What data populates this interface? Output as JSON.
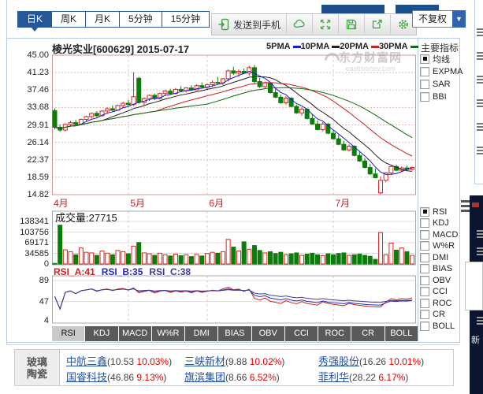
{
  "period_tabs": {
    "items": [
      {
        "label": "日K",
        "active": true
      },
      {
        "label": "周K",
        "active": false
      },
      {
        "label": "月K",
        "active": false
      },
      {
        "label": "5分钟",
        "active": false
      },
      {
        "label": "15分钟",
        "active": false
      }
    ]
  },
  "toolbar": {
    "send_button": "发送到手机",
    "icon_buttons": [
      "cloud-icon",
      "fullscreen-icon",
      "save-icon",
      "share-icon",
      "settings-icon"
    ],
    "adjust_label": "不复权",
    "dropdown_arrow": "▼",
    "icon_color": "#3aaa3a"
  },
  "chart_header": {
    "title": "棱光实业[600629] 2015-07-17",
    "legend": [
      {
        "label": "5PMA",
        "color": "#1a1ad2"
      },
      {
        "label": "10PMA",
        "color": "#202020"
      },
      {
        "label": "20PMA",
        "color": "#cc2020"
      },
      {
        "label": "30PMA",
        "color": "#0c6b0c"
      }
    ]
  },
  "watermark": {
    "name": "东方财富网",
    "domain": "eastmoney.com"
  },
  "indicator_panel": {
    "title": "主要指标",
    "main_options": [
      {
        "label": "均线",
        "checked": true
      },
      {
        "label": "EXPMA",
        "checked": false
      },
      {
        "label": "SAR",
        "checked": false
      },
      {
        "label": "BBI",
        "checked": false
      }
    ],
    "sub_options": [
      {
        "label": "RSI",
        "checked": true
      },
      {
        "label": "KDJ",
        "checked": false
      },
      {
        "label": "MACD",
        "checked": false
      },
      {
        "label": "W%R",
        "checked": false
      },
      {
        "label": "DMI",
        "checked": false
      },
      {
        "label": "BIAS",
        "checked": false
      },
      {
        "label": "OBV",
        "checked": false
      },
      {
        "label": "CCI",
        "checked": false
      },
      {
        "label": "ROC",
        "checked": false
      },
      {
        "label": "CR",
        "checked": false
      },
      {
        "label": "BOLL",
        "checked": false
      }
    ]
  },
  "price_axis": [
    "45.00",
    "41.23",
    "37.46",
    "33.68",
    "29.91",
    "26.14",
    "22.37",
    "18.59",
    "14.82"
  ],
  "volume_pane": {
    "title": "成交量:27715",
    "axis": [
      "138341",
      "103756",
      "69171",
      "34585",
      "0"
    ]
  },
  "rsi_pane": {
    "labels": [
      {
        "text": "RSI_A:41",
        "color": "#cc2222"
      },
      {
        "text": "RSI_B:35",
        "color": "#2929c0"
      },
      {
        "text": "RSI_C:38",
        "color": "#3d3d99"
      }
    ],
    "axis": [
      "89",
      "47",
      "4"
    ]
  },
  "indicator_tabs": {
    "active": "RSI",
    "items": [
      "RSI",
      "KDJ",
      "MACD",
      "W%R",
      "DMI",
      "BIAS",
      "OBV",
      "CCI",
      "ROC",
      "CR",
      "BOLL"
    ]
  },
  "sector_panel": {
    "category_lines": [
      "玻璃",
      "陶瓷"
    ],
    "paren_open": "(",
    "paren_close": ")",
    "stocks": [
      {
        "name": "中航三鑫",
        "price": "10.53",
        "change": "10.03%"
      },
      {
        "name": "三峡新材",
        "price": "9.88",
        "change": "10.02%"
      },
      {
        "name": "秀强股份",
        "price": "16.26",
        "change": "10.01%"
      },
      {
        "name": "国睿科技",
        "price": "46.86",
        "change": "9.13%"
      },
      {
        "name": "旗滨集团",
        "price": "8.66",
        "change": "6.52%"
      },
      {
        "name": "菲利华",
        "price": "28.22",
        "change": "6.17%"
      }
    ]
  },
  "right_edge": {
    "ad_char": "新"
  },
  "chart_data": {
    "type": "candlestick",
    "title": "棱光实业[600629] 2015-07-17",
    "price_axis_values": [
      45.0,
      41.23,
      37.46,
      33.68,
      29.91,
      26.14,
      22.37,
      18.59,
      14.82
    ],
    "price_range": [
      14.82,
      45.0
    ],
    "months": [
      "4月",
      "5月",
      "6月",
      "7月"
    ],
    "month_start_indices": [
      0,
      14,
      29,
      53
    ],
    "grid": true,
    "up_color": "#dd2222",
    "down_color": "#0b7d0b",
    "ma_periods": [
      5,
      10,
      20,
      30
    ],
    "ma_colors": [
      "#1a1ad2",
      "#202020",
      "#cc2020",
      "#0c6b0c"
    ],
    "candles": [
      [
        33.0,
        33.5,
        29.0,
        29.4
      ],
      [
        29.4,
        30.0,
        28.4,
        28.8
      ],
      [
        28.8,
        30.3,
        28.5,
        30.0
      ],
      [
        30.0,
        30.8,
        29.5,
        30.4
      ],
      [
        30.4,
        31.0,
        29.8,
        30.0
      ],
      [
        30.0,
        31.3,
        29.9,
        31.1
      ],
      [
        31.1,
        31.9,
        30.6,
        31.7
      ],
      [
        31.7,
        32.6,
        31.3,
        32.4
      ],
      [
        32.4,
        32.9,
        31.6,
        31.9
      ],
      [
        31.9,
        33.1,
        31.7,
        32.9
      ],
      [
        32.9,
        33.7,
        32.3,
        33.4
      ],
      [
        33.4,
        34.1,
        32.9,
        33.1
      ],
      [
        33.1,
        34.3,
        33.0,
        34.1
      ],
      [
        34.1,
        34.9,
        33.7,
        34.6
      ],
      [
        34.6,
        35.3,
        34.1,
        34.3
      ],
      [
        34.3,
        41.3,
        34.0,
        36.0
      ],
      [
        40.0,
        40.3,
        34.5,
        34.8
      ],
      [
        34.8,
        35.9,
        34.2,
        35.6
      ],
      [
        35.6,
        36.5,
        35.1,
        36.3
      ],
      [
        36.3,
        36.7,
        35.3,
        35.6
      ],
      [
        35.6,
        36.9,
        35.4,
        36.7
      ],
      [
        36.7,
        37.5,
        36.3,
        37.2
      ],
      [
        37.2,
        37.7,
        36.4,
        36.7
      ],
      [
        36.7,
        37.9,
        36.5,
        37.6
      ],
      [
        37.6,
        38.3,
        37.1,
        37.3
      ],
      [
        37.3,
        38.1,
        36.9,
        37.9
      ],
      [
        37.9,
        38.5,
        37.3,
        37.5
      ],
      [
        37.5,
        38.7,
        37.4,
        38.4
      ],
      [
        38.4,
        39.1,
        37.9,
        38.1
      ],
      [
        38.1,
        38.9,
        37.5,
        38.6
      ],
      [
        38.6,
        39.5,
        38.1,
        39.1
      ],
      [
        39.1,
        40.3,
        38.7,
        39.0
      ],
      [
        39.0,
        40.1,
        38.5,
        39.9
      ],
      [
        39.9,
        41.9,
        39.3,
        41.6
      ],
      [
        41.6,
        42.5,
        40.7,
        41.1
      ],
      [
        41.1,
        41.9,
        40.3,
        41.5
      ],
      [
        41.5,
        42.1,
        40.9,
        41.1
      ],
      [
        41.1,
        42.7,
        40.6,
        42.3
      ],
      [
        42.3,
        42.9,
        38.9,
        39.3
      ],
      [
        39.3,
        40.1,
        37.9,
        38.2
      ],
      [
        38.2,
        39.3,
        37.7,
        39.0
      ],
      [
        39.0,
        39.1,
        36.7,
        36.9
      ],
      [
        36.9,
        37.9,
        35.7,
        35.9
      ],
      [
        35.9,
        36.5,
        34.5,
        34.7
      ],
      [
        34.7,
        36.1,
        34.3,
        35.7
      ],
      [
        35.7,
        35.9,
        33.7,
        33.9
      ],
      [
        33.9,
        34.3,
        32.3,
        32.5
      ],
      [
        32.5,
        33.7,
        31.9,
        33.3
      ],
      [
        33.3,
        33.5,
        31.1,
        31.3
      ],
      [
        31.3,
        32.1,
        29.9,
        30.1
      ],
      [
        30.1,
        30.9,
        28.7,
        28.9
      ],
      [
        28.9,
        30.5,
        28.5,
        30.1
      ],
      [
        30.1,
        30.3,
        27.9,
        28.1
      ],
      [
        28.1,
        28.9,
        26.7,
        26.9
      ],
      [
        26.9,
        27.7,
        25.5,
        25.7
      ],
      [
        25.7,
        26.5,
        24.3,
        24.5
      ],
      [
        24.5,
        25.7,
        24.1,
        25.3
      ],
      [
        25.3,
        25.5,
        23.1,
        23.3
      ],
      [
        23.3,
        24.1,
        21.9,
        22.1
      ],
      [
        22.1,
        22.7,
        20.5,
        20.7
      ],
      [
        20.7,
        21.5,
        19.1,
        19.3
      ],
      [
        19.3,
        20.5,
        18.3,
        18.5
      ],
      [
        15.2,
        18.7,
        14.9,
        17.9
      ],
      [
        17.9,
        19.7,
        17.5,
        19.5
      ],
      [
        19.5,
        21.1,
        19.1,
        20.9
      ],
      [
        20.9,
        21.3,
        19.9,
        20.1
      ],
      [
        20.1,
        20.9,
        19.7,
        20.6
      ],
      [
        20.6,
        21.1,
        19.9,
        20.3
      ],
      [
        20.3,
        20.9,
        20.0,
        20.7
      ]
    ],
    "volumes": [
      2000,
      126000,
      46000,
      40000,
      30000,
      52000,
      38000,
      36000,
      28000,
      42000,
      35000,
      30000,
      44000,
      40000,
      33000,
      58000,
      70000,
      36000,
      33000,
      28000,
      35000,
      30000,
      26000,
      32000,
      27000,
      30000,
      24000,
      31000,
      26000,
      34000,
      38000,
      35000,
      40000,
      80000,
      55000,
      42000,
      72000,
      48000,
      60000,
      44000,
      36000,
      40000,
      34000,
      38000,
      30000,
      33000,
      36000,
      28000,
      32000,
      35000,
      30000,
      27000,
      33000,
      30000,
      34000,
      36000,
      28000,
      30000,
      32000,
      28000,
      25000,
      15000,
      102000,
      30000,
      68000,
      45000,
      52000,
      40000,
      27715
    ],
    "volume_axis_values": [
      138341,
      103756,
      69171,
      34585,
      0
    ],
    "last_volume": 27715,
    "rsi_periods": [
      6,
      12,
      24
    ],
    "rsi_colors": [
      "#cc2222",
      "#2929c0",
      "#3d3d99"
    ],
    "rsi_axis_values": [
      89,
      47,
      4
    ],
    "rsi_last_values": {
      "RSI_A": 41,
      "RSI_B": 35,
      "RSI_C": 38
    }
  }
}
